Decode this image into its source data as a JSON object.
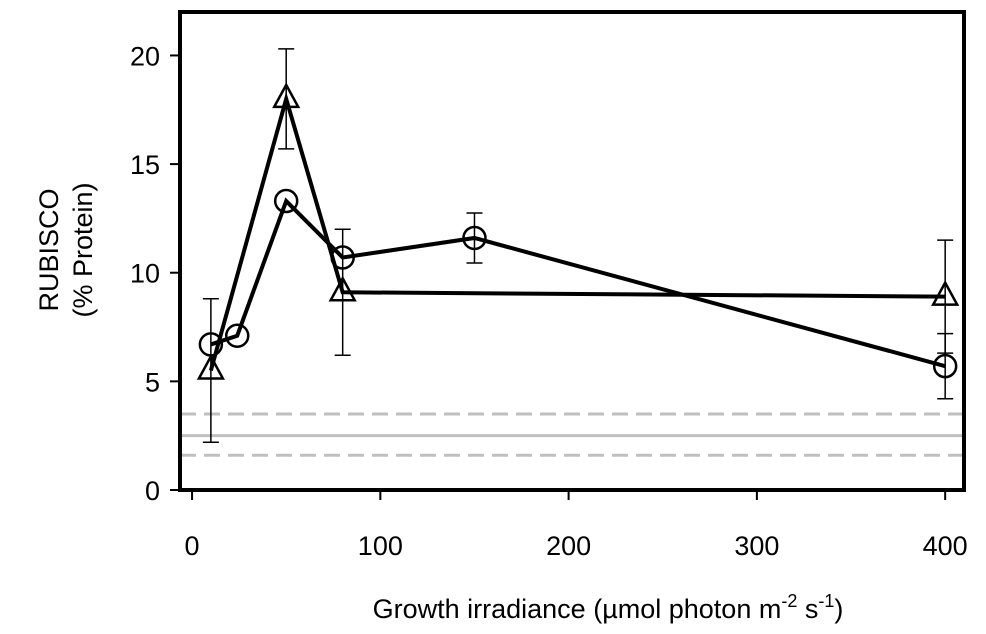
{
  "chart_data": {
    "type": "line",
    "xlabel": [
      "Growth irradiance (µmol photon m",
      "-2",
      " s",
      "-1",
      ")"
    ],
    "ylabel": [
      "RUBISCO",
      "(% Protein)"
    ],
    "xlim": [
      -6.4,
      410
    ],
    "xticks": [
      0,
      100,
      200,
      300,
      400
    ],
    "ylim": [
      0,
      22
    ],
    "yticks": [
      0,
      5,
      10,
      15,
      20
    ],
    "series": [
      {
        "marker": "circle",
        "color": "#000000",
        "x": [
          10,
          24,
          50,
          80,
          150,
          400
        ],
        "values": [
          6.7,
          7.1,
          13.3,
          10.7,
          11.6,
          5.7
        ],
        "errors": [
          null,
          null,
          null,
          null,
          1.15,
          1.5
        ]
      },
      {
        "marker": "triangle",
        "color": "#000000",
        "x": [
          10,
          50,
          80,
          400
        ],
        "values": [
          5.5,
          18.0,
          9.1,
          8.9
        ],
        "errors": [
          3.3,
          2.3,
          2.9,
          2.6
        ]
      }
    ],
    "hlines": [
      {
        "value": 3.5,
        "style": "dashed",
        "color": "#c0c0c0"
      },
      {
        "value": 2.5,
        "style": "solid",
        "color": "#c0c0c0"
      },
      {
        "value": 1.6,
        "style": "dashed",
        "color": "#c0c0c0"
      }
    ]
  }
}
